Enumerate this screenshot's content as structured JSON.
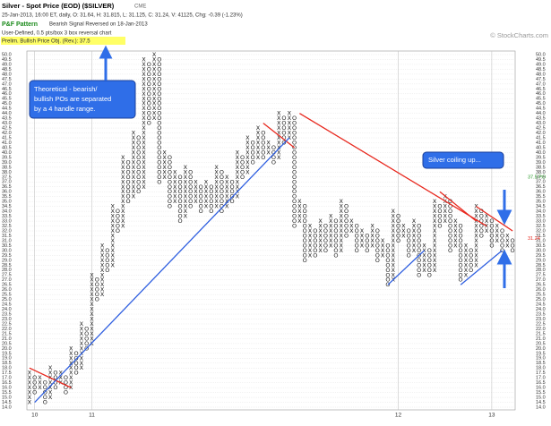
{
  "chart_data": {
    "type": "pnf",
    "title": "Silver - Spot Price (EOD) ($SILVER)",
    "exchange": "CME",
    "subtitle": "25-Jan-2013, 16:00 ET, daily, O: 31.64, H: 31.815, L: 31.125, C: 31.24, V: 41125, Chg: -0.39 (-1.23%)",
    "pattern_label": "P&F Pattern",
    "pattern": "Bearish Signal Reversed on 18-Jan-2013",
    "settings": "User-Defined, 0.5 pts/box 3 box reversal chart",
    "objective": "Prelim. Bullish Price Obj. (Rev.): 37.5",
    "copyright": "© StockCharts.com",
    "box_size": 0.5,
    "ylim": [
      14,
      50
    ],
    "yticks": [
      {
        "value": 14,
        "label": "14.0"
      },
      14.5,
      {
        "value": 15,
        "label": "15.0"
      },
      15.5,
      {
        "value": 16,
        "label": "16.0"
      },
      16.5,
      {
        "value": 17,
        "label": "17.0"
      },
      17.5,
      {
        "value": 18,
        "label": "18.0"
      },
      18.5,
      {
        "value": 19,
        "label": "19.0"
      },
      19.5,
      {
        "value": 20,
        "label": "20.0"
      },
      20.5,
      {
        "value": 21,
        "label": "21.0"
      },
      21.5,
      {
        "value": 22,
        "label": "22.0"
      },
      22.5,
      {
        "value": 23,
        "label": "23.0"
      },
      23.5,
      {
        "value": 24,
        "label": "24.0"
      },
      24.5,
      {
        "value": 25,
        "label": "25.0"
      },
      25.5,
      {
        "value": 26,
        "label": "26.0"
      },
      26.5,
      {
        "value": 27,
        "label": "27.0"
      },
      27.5,
      {
        "value": 28,
        "label": "28.0"
      },
      28.5,
      {
        "value": 29,
        "label": "29.0"
      },
      29.5,
      {
        "value": 30,
        "label": "30.0"
      },
      30.5,
      {
        "value": 31,
        "label": "31.0"
      },
      31.5,
      {
        "value": 32,
        "label": "32.0"
      },
      32.5,
      {
        "value": 33,
        "label": "33.0"
      },
      33.5,
      {
        "value": 34,
        "label": "34.0"
      },
      34.5,
      {
        "value": 35,
        "label": "35.0"
      },
      35.5,
      {
        "value": 36,
        "label": "36.0"
      },
      36.5,
      {
        "value": 37,
        "label": "37.0"
      },
      37.5,
      {
        "value": 38,
        "label": "38.0"
      },
      38.5,
      {
        "value": 39,
        "label": "39.0"
      },
      39.5,
      {
        "value": 40,
        "label": "40.0"
      },
      40.5,
      {
        "value": 41,
        "label": "41.0"
      },
      41.5,
      {
        "value": 42,
        "label": "42.0"
      },
      42.5,
      {
        "value": 43,
        "label": "43.0"
      },
      43.5,
      {
        "value": 44,
        "label": "44.0"
      },
      44.5,
      {
        "value": 45,
        "label": "45.0"
      },
      45.5,
      {
        "value": 46,
        "label": "46.0"
      },
      46.5,
      {
        "value": 47,
        "label": "47.0"
      },
      47.5,
      {
        "value": 48,
        "label": "48.0"
      },
      48.5,
      {
        "value": 49,
        "label": "49.0"
      },
      49.5,
      {
        "value": 50,
        "label": "50.0"
      }
    ],
    "categories": [
      null,
      "10",
      null,
      null,
      null,
      null,
      null,
      null,
      null,
      null,
      null,
      null,
      "11",
      null,
      null,
      null,
      null,
      null,
      null,
      null,
      null,
      null,
      null,
      null,
      null,
      null,
      null,
      null,
      null,
      null,
      null,
      null,
      null,
      null,
      null,
      null,
      null,
      null,
      null,
      null,
      null,
      null,
      null,
      null,
      null,
      null,
      null,
      null,
      null,
      null,
      null,
      null,
      null,
      null,
      null,
      null,
      null,
      null,
      null,
      null,
      null,
      null,
      null,
      null,
      null,
      null,
      null,
      null,
      null,
      null,
      null,
      "12",
      null,
      null,
      null,
      null,
      null,
      null,
      null,
      null,
      null,
      null,
      null,
      null,
      null,
      null,
      null,
      null,
      null,
      "13",
      null,
      null,
      null,
      null
    ],
    "symbols": {
      "up": "X",
      "down": "O"
    },
    "columns": [
      [
        14.5,
        17.5
      ],
      [
        15.5,
        17
      ],
      [
        16,
        17
      ],
      [
        14.5,
        16.5
      ],
      [
        15,
        18
      ],
      [
        16,
        17.5
      ],
      [
        16.5,
        17.5
      ],
      [
        15.5,
        17
      ],
      [
        16,
        20
      ],
      [
        17.5,
        19.5
      ],
      [
        18,
        22.5
      ],
      [
        20,
        22
      ],
      [
        20.5,
        27.5
      ],
      [
        25,
        27
      ],
      [
        25.5,
        30.5
      ],
      [
        28,
        30
      ],
      [
        28.5,
        34.5
      ],
      [
        32,
        34
      ],
      [
        32.5,
        39.5
      ],
      [
        35,
        39
      ],
      [
        35.5,
        42
      ],
      [
        36,
        41.5
      ],
      [
        36.5,
        49.5
      ],
      [
        43,
        49
      ],
      [
        43.5,
        50
      ],
      [
        37,
        49.5
      ],
      [
        37.5,
        40
      ],
      [
        34.5,
        39.5
      ],
      [
        35,
        38
      ],
      [
        33,
        37.5
      ],
      [
        33.5,
        38.5
      ],
      [
        34.5,
        38
      ],
      [
        35,
        37
      ],
      [
        34,
        36.5
      ],
      [
        34.5,
        37
      ],
      [
        34,
        36.5
      ],
      [
        34.5,
        38.5
      ],
      [
        34,
        38
      ],
      [
        34.5,
        37.5
      ],
      [
        35,
        37
      ],
      [
        35.5,
        40
      ],
      [
        37.5,
        39.5
      ],
      [
        38,
        41.5
      ],
      [
        39,
        41
      ],
      [
        39.5,
        42.5
      ],
      [
        39.5,
        42
      ],
      [
        40,
        41
      ],
      [
        39,
        40.5
      ],
      [
        39.5,
        44
      ],
      [
        41,
        43.5
      ],
      [
        41.5,
        44
      ],
      [
        32.5,
        43.5
      ],
      [
        33,
        35
      ],
      [
        29,
        34.5
      ],
      [
        29.5,
        32.5
      ],
      [
        29.5,
        32
      ],
      [
        30,
        33
      ],
      [
        30,
        32.5
      ],
      [
        30.5,
        33.5
      ],
      [
        29.5,
        33
      ],
      [
        30,
        35
      ],
      [
        31.5,
        34.5
      ],
      [
        32,
        33
      ],
      [
        30,
        32.5
      ],
      [
        30.5,
        32
      ],
      [
        30,
        31.5
      ],
      [
        30.5,
        32.5
      ],
      [
        29,
        32
      ],
      [
        29.5,
        31
      ],
      [
        26.5,
        30.5
      ],
      [
        27,
        34
      ],
      [
        31,
        33.5
      ],
      [
        31.5,
        32.5
      ],
      [
        29.5,
        32
      ],
      [
        30,
        33
      ],
      [
        27.5,
        32.5
      ],
      [
        28,
        30.5
      ],
      [
        27.5,
        30
      ],
      [
        28,
        35
      ],
      [
        32.5,
        34.5
      ],
      [
        33,
        35.5
      ],
      [
        30,
        35
      ],
      [
        30.5,
        33
      ],
      [
        27,
        32.5
      ],
      [
        27.5,
        30.5
      ],
      [
        28,
        30
      ],
      [
        28.5,
        34.5
      ],
      [
        31.5,
        34
      ],
      [
        32,
        33.5
      ],
      [
        30.5,
        33
      ],
      [
        31,
        32.5
      ],
      [
        30,
        32
      ],
      [
        30.5,
        31.5
      ],
      [
        30,
        31
      ]
    ],
    "trendlines": [
      {
        "color": "#e8281e",
        "from": [
          0,
          18
        ],
        "to": [
          8,
          16
        ]
      },
      {
        "color": "#e8281e",
        "from": [
          45,
          43
        ],
        "to": [
          51,
          40.5
        ]
      },
      {
        "color": "#e8281e",
        "from": [
          52,
          44
        ],
        "to": [
          88,
          32.5
        ]
      },
      {
        "color": "#e8281e",
        "from": [
          79,
          36
        ],
        "to": [
          86,
          33
        ]
      },
      {
        "color": "#e8281e",
        "from": [
          86,
          34.5
        ],
        "to": [
          93,
          32
        ]
      },
      {
        "color": "#2f5fe0",
        "from": [
          1,
          14.5
        ],
        "to": [
          50,
          41.5
        ]
      },
      {
        "color": "#2f5fe0",
        "from": [
          69,
          26.5
        ],
        "to": [
          76,
          30
        ]
      },
      {
        "color": "#2f5fe0",
        "from": [
          83,
          26.5
        ],
        "to": [
          91,
          30
        ]
      }
    ],
    "markers": [
      {
        "value": 37.5,
        "label": "37.5 PO",
        "color": "#2a9a2a"
      },
      {
        "value": 31.24,
        "label": "31.24",
        "color": "#e8281e"
      }
    ],
    "callouts": [
      "Theoretical - bearish/",
      "bullish POs are separated",
      "by a 4 handle range.",
      "Silver coiling up..."
    ]
  }
}
